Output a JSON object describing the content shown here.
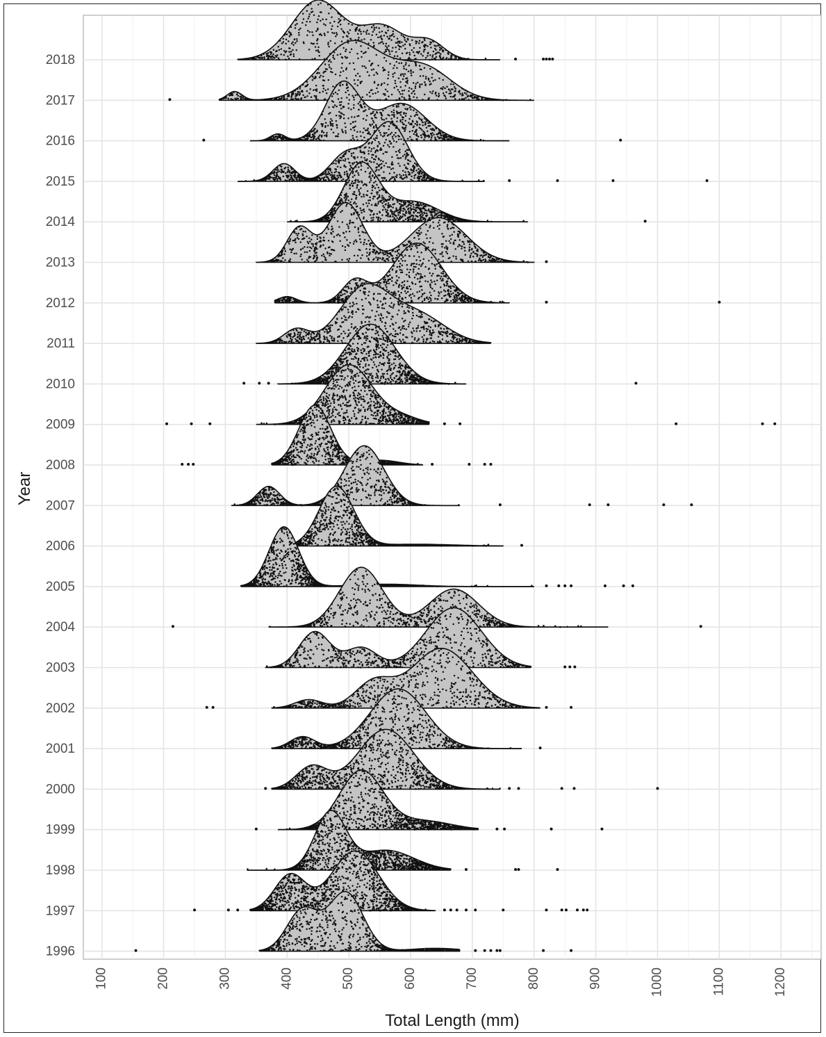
{
  "chart_data": {
    "type": "ridgeline",
    "xlabel": "Total Length (mm)",
    "ylabel": "Year",
    "xlim": [
      70,
      1265
    ],
    "x_ticks": [
      100,
      200,
      300,
      400,
      500,
      600,
      700,
      800,
      900,
      1000,
      1100,
      1200
    ],
    "grid": true,
    "colors": {
      "grid": "#e4e4e4",
      "density_fill": "#c4c4c4",
      "points": "#111111",
      "outline": "#111111"
    },
    "series": [
      {
        "name": "2018",
        "range": [
          320,
          745
        ],
        "peaks": [
          [
            450,
            42,
            1.0
          ],
          [
            555,
            35,
            0.55
          ],
          [
            630,
            25,
            0.3
          ]
        ],
        "dens": 0.3,
        "n": 520,
        "outliers": [
          770,
          815,
          820,
          825,
          830
        ]
      },
      {
        "name": "2017",
        "range": [
          290,
          800
        ],
        "peaks": [
          [
            315,
            12,
            0.12
          ],
          [
            505,
            50,
            0.8
          ],
          [
            620,
            45,
            0.45
          ]
        ],
        "dens": 0.3,
        "n": 560,
        "outliers": [
          210
        ]
      },
      {
        "name": "2016",
        "range": [
          340,
          760
        ],
        "peaks": [
          [
            385,
            12,
            0.12
          ],
          [
            490,
            28,
            1.0
          ],
          [
            585,
            40,
            0.65
          ]
        ],
        "dens": 0.42,
        "n": 600,
        "outliers": [
          265,
          940
        ]
      },
      {
        "name": "2015",
        "range": [
          320,
          720
        ],
        "peaks": [
          [
            395,
            18,
            0.3
          ],
          [
            495,
            25,
            0.45
          ],
          [
            565,
            30,
            1.0
          ]
        ],
        "dens": 0.45,
        "n": 620,
        "outliers": [
          760,
          838,
          928,
          1080
        ]
      },
      {
        "name": "2014",
        "range": [
          400,
          790
        ],
        "peaks": [
          [
            520,
            28,
            1.0
          ],
          [
            605,
            40,
            0.35
          ]
        ],
        "dens": 0.6,
        "n": 640,
        "outliers": [
          980
        ]
      },
      {
        "name": "2013",
        "range": [
          350,
          800
        ],
        "peaks": [
          [
            420,
            20,
            0.35
          ],
          [
            495,
            28,
            0.6
          ],
          [
            645,
            45,
            0.45
          ]
        ],
        "dens": 0.35,
        "n": 600,
        "outliers": [
          820
        ]
      },
      {
        "name": "2012",
        "range": [
          380,
          760
        ],
        "peaks": [
          [
            400,
            15,
            0.1
          ],
          [
            510,
            20,
            0.35
          ],
          [
            610,
            40,
            0.95
          ]
        ],
        "dens": 0.48,
        "n": 620,
        "outliers": [
          820,
          1100
        ]
      },
      {
        "name": "2011",
        "range": [
          350,
          730
        ],
        "peaks": [
          [
            415,
            20,
            0.22
          ],
          [
            525,
            40,
            0.85
          ],
          [
            610,
            45,
            0.45
          ]
        ],
        "dens": 0.38,
        "n": 600,
        "outliers": []
      },
      {
        "name": "2010",
        "range": [
          385,
          690
        ],
        "peaks": [
          [
            535,
            40,
            1.0
          ]
        ],
        "dens": 0.6,
        "n": 660,
        "outliers": [
          330,
          355,
          370,
          965
        ]
      },
      {
        "name": "2009",
        "range": [
          350,
          630
        ],
        "peaks": [
          [
            500,
            38,
            1.0
          ],
          [
            585,
            30,
            0.12
          ]
        ],
        "dens": 0.6,
        "n": 600,
        "outliers": [
          205,
          245,
          275,
          655,
          680,
          1030,
          1170,
          1190
        ]
      },
      {
        "name": "2008",
        "range": [
          375,
          620
        ],
        "peaks": [
          [
            445,
            26,
            1.0
          ],
          [
            550,
            30,
            0.08
          ]
        ],
        "dens": 0.65,
        "n": 580,
        "outliers": [
          230,
          240,
          248,
          635,
          695,
          720,
          730
        ]
      },
      {
        "name": "2007",
        "range": [
          310,
          680
        ],
        "peaks": [
          [
            370,
            18,
            0.32
          ],
          [
            525,
            32,
            1.0
          ]
        ],
        "dens": 0.5,
        "n": 580,
        "outliers": [
          745,
          890,
          920,
          1010,
          1055
        ]
      },
      {
        "name": "2006",
        "range": [
          410,
          750
        ],
        "peaks": [
          [
            480,
            28,
            1.0
          ],
          [
            610,
            60,
            0.03
          ]
        ],
        "dens": 0.75,
        "n": 640,
        "outliers": [
          780
        ]
      },
      {
        "name": "2005",
        "range": [
          325,
          800
        ],
        "peaks": [
          [
            395,
            24,
            1.0
          ],
          [
            560,
            50,
            0.04
          ]
        ],
        "dens": 0.95,
        "n": 720,
        "outliers": [
          820,
          840,
          850,
          860,
          915,
          945,
          960
        ]
      },
      {
        "name": "2004",
        "range": [
          370,
          920
        ],
        "peaks": [
          [
            520,
            35,
            0.55
          ],
          [
            670,
            40,
            0.35
          ]
        ],
        "dens": 0.35,
        "n": 560,
        "outliers": [
          215,
          1070
        ]
      },
      {
        "name": "2003",
        "range": [
          365,
          795
        ],
        "peaks": [
          [
            445,
            25,
            0.45
          ],
          [
            520,
            25,
            0.25
          ],
          [
            670,
            45,
            0.75
          ]
        ],
        "dens": 0.35,
        "n": 560,
        "outliers": [
          850,
          858,
          866
        ]
      },
      {
        "name": "2002",
        "range": [
          375,
          810
        ],
        "peaks": [
          [
            435,
            22,
            0.12
          ],
          [
            540,
            30,
            0.35
          ],
          [
            650,
            50,
            0.85
          ]
        ],
        "dens": 0.4,
        "n": 560,
        "outliers": [
          270,
          280,
          820,
          860
        ]
      },
      {
        "name": "2001",
        "range": [
          375,
          780
        ],
        "peaks": [
          [
            425,
            20,
            0.2
          ],
          [
            580,
            45,
            1.0
          ]
        ],
        "dens": 0.45,
        "n": 580,
        "outliers": [
          810
        ]
      },
      {
        "name": "2000",
        "range": [
          375,
          745
        ],
        "peaks": [
          [
            440,
            25,
            0.3
          ],
          [
            560,
            45,
            0.8
          ]
        ],
        "dens": 0.55,
        "n": 600,
        "outliers": [
          365,
          760,
          775,
          845,
          865,
          1000
        ]
      },
      {
        "name": "1999",
        "range": [
          385,
          710
        ],
        "peaks": [
          [
            520,
            35,
            1.0
          ],
          [
            620,
            45,
            0.15
          ]
        ],
        "dens": 0.7,
        "n": 620,
        "outliers": [
          350,
          740,
          752,
          828,
          910
        ]
      },
      {
        "name": "1998",
        "range": [
          335,
          665
        ],
        "peaks": [
          [
            470,
            25,
            1.0
          ],
          [
            560,
            45,
            0.35
          ]
        ],
        "dens": 0.8,
        "n": 640,
        "outliers": [
          690,
          770,
          775,
          838
        ]
      },
      {
        "name": "1997",
        "range": [
          340,
          640
        ],
        "peaks": [
          [
            405,
            25,
            0.6
          ],
          [
            510,
            38,
            1.0
          ]
        ],
        "dens": 0.8,
        "n": 640,
        "outliers": [
          250,
          305,
          320,
          655,
          665,
          675,
          690,
          705,
          750,
          820,
          845,
          852,
          870,
          880,
          886
        ]
      },
      {
        "name": "1996",
        "range": [
          355,
          680
        ],
        "peaks": [
          [
            425,
            25,
            0.7
          ],
          [
            495,
            28,
            1.0
          ],
          [
            640,
            40,
            0.05
          ]
        ],
        "dens": 0.5,
        "n": 560,
        "outliers": [
          155,
          705,
          720,
          730,
          740,
          745,
          815,
          860
        ]
      }
    ]
  }
}
